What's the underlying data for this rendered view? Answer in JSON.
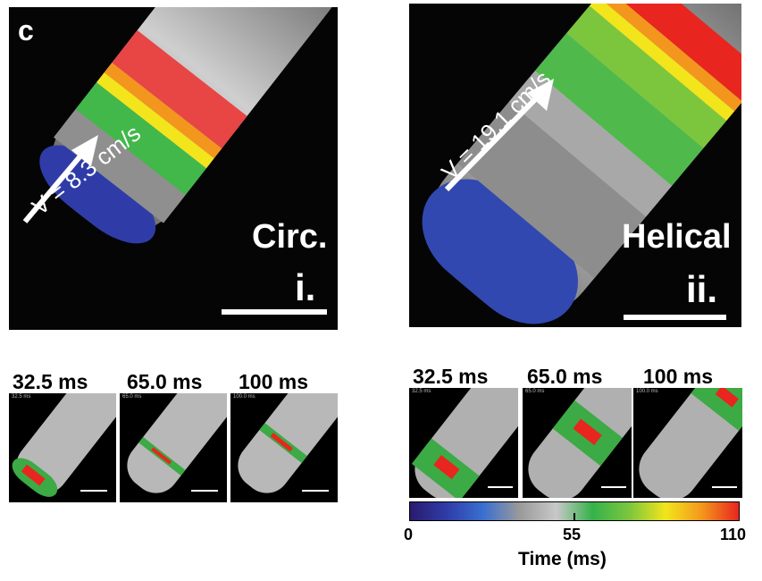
{
  "figure_label": "c",
  "panel_i": {
    "velocity": "V = 8.3 cm/s",
    "mode": "Circ.",
    "numeral": "i.",
    "thumbs": [
      {
        "caption": "32.5 ms",
        "stamp": "32.5 ms"
      },
      {
        "caption": "65.0 ms",
        "stamp": "65.0 ms"
      },
      {
        "caption": "100 ms",
        "stamp": "100.0 ms"
      }
    ]
  },
  "panel_ii": {
    "velocity": "V = 19.1 cm/s",
    "mode": "Helical",
    "numeral": "ii.",
    "thumbs": [
      {
        "caption": "32.5 ms",
        "stamp": "32.5 ms"
      },
      {
        "caption": "65.0 ms",
        "stamp": "65.0 ms"
      },
      {
        "caption": "100 ms",
        "stamp": "100.0 ms"
      }
    ]
  },
  "colorbar": {
    "min": "0",
    "mid": "55",
    "max": "110",
    "label": "Time (ms)",
    "colors": [
      "#2a1b6e",
      "#2f3ca8",
      "#3a6fd0",
      "#9a9a9a",
      "#c8c8c8",
      "#35b24a",
      "#7cc63e",
      "#f2e51c",
      "#f3961d",
      "#e8251f"
    ]
  }
}
